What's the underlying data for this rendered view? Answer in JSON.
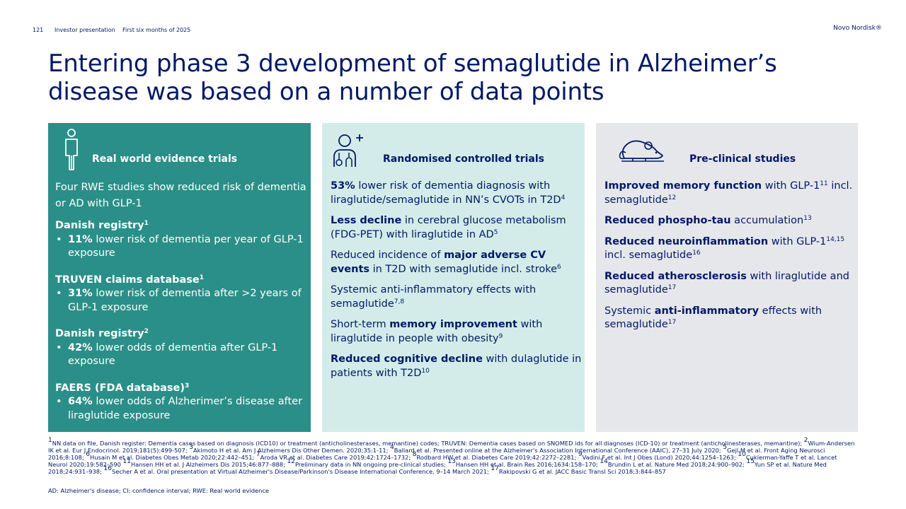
{
  "header": {
    "page_number": "121",
    "label1": "Investor presentation",
    "label2": "First six months of 2025",
    "brand": "Novo Nordisk®"
  },
  "title": "Entering phase 3 development of semaglutide in Alzheimer’s disease was based on a number of data points",
  "colors": {
    "navy": "#001965",
    "teal": "#2a8f88",
    "light_teal": "#d3ece9",
    "light_grey": "#e6e7eb"
  },
  "panel1": {
    "icon": "person-icon",
    "heading": "Real world evidence trials",
    "intro": "Four RWE studies show reduced risk of dementia or AD with GLP-1",
    "groups": [
      {
        "heading": "Danish registry",
        "sup": "1",
        "bold": "11%",
        "text": " lower risk of dementia per year of GLP-1 exposure"
      },
      {
        "heading": "TRUVEN claims database",
        "sup": "1",
        "bold": "31%",
        "text": " lower risk of dementia after >2 years of GLP-1 exposure"
      },
      {
        "heading": "Danish registry",
        "sup": "2",
        "bold": "42%",
        "text": " lower odds of dementia after GLP-1 exposure"
      },
      {
        "heading": "FAERS (FDA database)",
        "sup": "3",
        "bold": "64%",
        "text": " lower odds of Alzherimer’s disease after liraglutide exposure"
      }
    ]
  },
  "panel2": {
    "icon": "patient-plus-icon",
    "heading": "Randomised controlled trials",
    "items": [
      {
        "pre": "",
        "bold": "53%",
        "post": " lower risk of dementia diagnosis with liraglutide/semaglutide in NN’s CVOTs in T2D",
        "sup": "4"
      },
      {
        "pre": "",
        "bold": "Less decline",
        "post": " in cerebral glucose metabolism (FDG-PET) with liraglutide in AD",
        "sup": "5"
      },
      {
        "pre": "Reduced incidence of ",
        "bold": "major adverse CV events",
        "post": " in T2D with semaglutide incl. stroke",
        "sup": "6"
      },
      {
        "pre": "Systemic anti-inflammatory effects with semaglutide",
        "bold": "",
        "post": "",
        "sup": "7,8"
      },
      {
        "pre": "Short-term ",
        "bold": "memory improvement",
        "post": " with liraglutide in people with obesity",
        "sup": "9"
      },
      {
        "pre": "",
        "bold": "Reduced cognitive decline",
        "post": " with dulaglutide in patients with T2D",
        "sup": "10"
      }
    ]
  },
  "panel3": {
    "icon": "mouse-icon",
    "heading": "Pre-clinical studies",
    "items": [
      {
        "pre": "",
        "bold": "Improved memory function",
        "mid": " with GLP-1",
        "sup1": "11",
        "post": " incl. semaglutide",
        "sup2": "12"
      },
      {
        "pre": "",
        "bold": "Reduced phospho-tau",
        "mid": " accumulation",
        "sup1": "13",
        "post": "",
        "sup2": ""
      },
      {
        "pre": "",
        "bold": "Reduced neuroinflammation",
        "mid": " with GLP-1",
        "sup1": "14,15",
        "post": " incl. semaglutide",
        "sup2": "16"
      },
      {
        "pre": "",
        "bold": "Reduced atherosclerosis",
        "mid": " with liraglutide and semaglutide",
        "sup1": "17",
        "post": "",
        "sup2": ""
      },
      {
        "pre": "Systemic ",
        "bold": "anti-inflammatory",
        "mid": " effects with semaglutide",
        "sup1": "17",
        "post": "",
        "sup2": ""
      }
    ]
  },
  "footnotes": [
    {
      "sup": "1",
      "text": "NN data on file,  Danish register: Dementia cases based on diagnosis (ICD10) or treatment (anticholinesterases, memantine) codes; TRUVEN: Dementia cases based on SNOMED ids for all diagnoses (ICD-10) or treatment (anticholinesterases, memantine); "
    },
    {
      "sup": "2",
      "text": "Wium-Andersen IK et al. Eur J Endocrinol. 2019;181(5):499-507; "
    },
    {
      "sup": "3",
      "text": "Akimoto H et al. Am J Alzheimers Dis Other Demen. 2020;35:1-11; "
    },
    {
      "sup": "4",
      "text": "Ballard et al. Presented online at the Alzheimer's Association International Conference (AAIC), 27–31 July 2020; "
    },
    {
      "sup": "5",
      "text": "Gejl M et al. Front Aging Neurosci 2016;8:108; "
    },
    {
      "sup": "6",
      "text": "Husain M et al. Diabetes Obes Metab 2020;22:442–451; "
    },
    {
      "sup": "7",
      "text": "Aroda VR et al. Diabetes Care 2019;42:1724–1732; "
    },
    {
      "sup": "8",
      "text": "Rodbard HW et al. Diabetes Care 2019;42:2272–2281; "
    },
    {
      "sup": "9",
      "text": "Vadini F et al. Int J Obes (Lond) 2020;44:1254–1263; "
    },
    {
      "sup": "10",
      "text": "Cukierman-Yaffe T et al. Lancet Neurol 2020;19:582–590 "
    },
    {
      "sup": "11",
      "text": "Hansen HH et al. J Alzheimers Dis 2015;46:877–888; "
    },
    {
      "sup": "12",
      "text": "Preliminary data in NN ongoing pre-clinical studies; "
    },
    {
      "sup": "13",
      "text": "Hansen HH et al. Brain Res 2016;1634:158–170; "
    },
    {
      "sup": "14",
      "text": "Brundin L et al. Nature Med 2018;24:900–902; "
    },
    {
      "sup": "15",
      "text": "Yun SP et al. Nature Med 2018;24:931–938; "
    },
    {
      "sup": "16",
      "text": "Secher A et al. Oral presentation at Virtual Alzheimer's Disease/Parkinson's Disease International Conference, 9–14 March 2021; "
    },
    {
      "sup": "17",
      "text": "Rakipovski G et al. JACC Basic Transl Sci 2018;3:844–857"
    }
  ],
  "abbreviations": "AD: Alzheimer's disease; CI: confidence interval; RWE: Real world evidence"
}
